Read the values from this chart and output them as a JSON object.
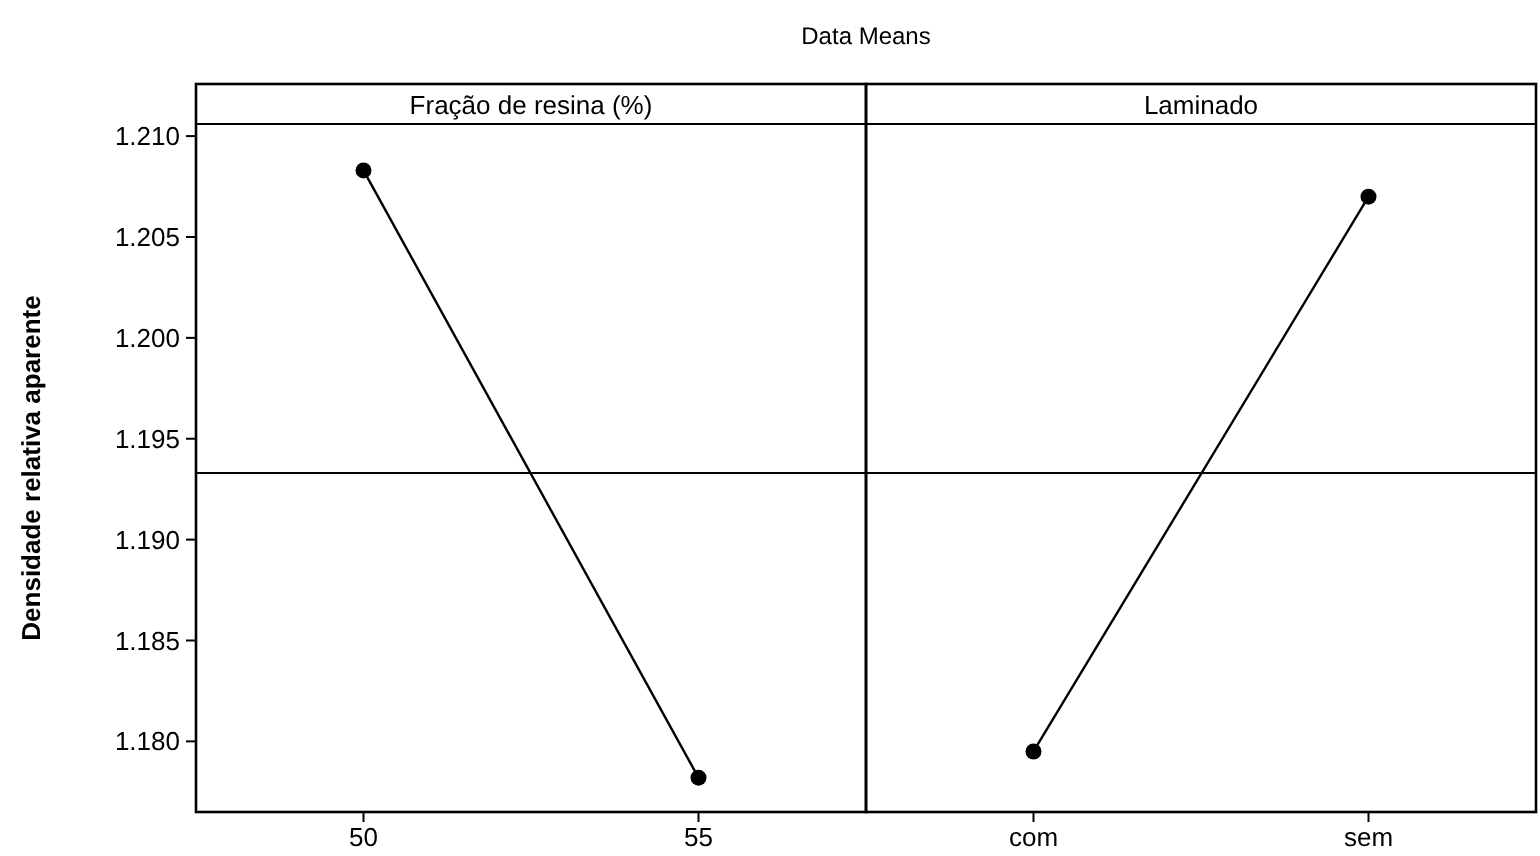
{
  "chart_data": [
    {
      "type": "line",
      "title": "Data Means",
      "xlabel": "Fração de resina (%)",
      "ylabel": "Densidade relativa aparente",
      "categories": [
        "50",
        "55"
      ],
      "values": [
        1.2083,
        1.1782
      ],
      "color": "#000000",
      "marker": "circle",
      "ylim": [
        1.1765,
        1.2106
      ],
      "yticks": [
        {
          "value": 1.18,
          "label": "1.180"
        },
        {
          "value": 1.185,
          "label": "1.185"
        },
        {
          "value": 1.19,
          "label": "1.190"
        },
        {
          "value": 1.195,
          "label": "1.195"
        },
        {
          "value": 1.2,
          "label": "1.200"
        },
        {
          "value": 1.205,
          "label": "1.205"
        },
        {
          "value": 1.21,
          "label": "1.210"
        }
      ],
      "ref_lines": [
        {
          "axis": "y",
          "value": 1.1933,
          "color": "#000000"
        }
      ]
    },
    {
      "type": "line",
      "xlabel": "Laminado",
      "categories": [
        "com",
        "sem"
      ],
      "values": [
        1.1795,
        1.207
      ],
      "color": "#000000",
      "marker": "circle",
      "ylim": [
        1.1765,
        1.2106
      ],
      "tick_labels": "x",
      "ref_lines": [
        {
          "axis": "y",
          "value": 1.1933,
          "color": "#000000"
        }
      ]
    }
  ]
}
